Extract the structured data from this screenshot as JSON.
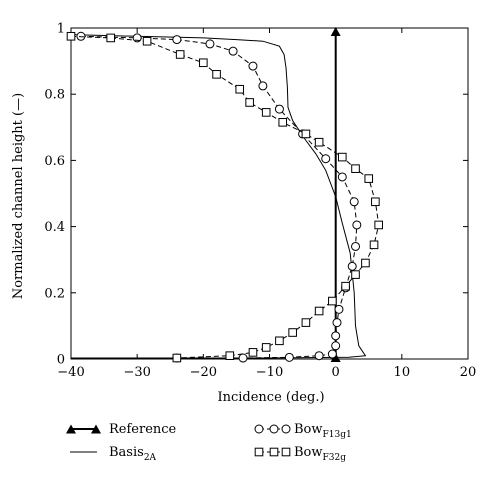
{
  "chart_data": {
    "type": "line",
    "title": "",
    "xlabel": "Incidence (deg.)",
    "ylabel": "Normalized channel height (—)",
    "xlim": [
      -40,
      20
    ],
    "ylim": [
      0,
      1
    ],
    "x_ticks": [
      "−40",
      "−30",
      "−20",
      "−10",
      "0",
      "10",
      "20"
    ],
    "y_ticks": [
      "0",
      "0.2",
      "0.4",
      "0.6",
      "0.8",
      "1"
    ],
    "grid": false,
    "legend_placement": "below",
    "series": [
      {
        "name": "Reference",
        "name_sub": "",
        "style": "solid-filled-triangle",
        "points": [
          [
            0,
            0
          ],
          [
            0,
            1
          ]
        ]
      },
      {
        "name": "Basis",
        "name_sub": "2A",
        "style": "solid",
        "points": [
          [
            -40,
            0.98
          ],
          [
            -30,
            0.975
          ],
          [
            -20,
            0.97
          ],
          [
            -15,
            0.965
          ],
          [
            -11,
            0.96
          ],
          [
            -8.5,
            0.945
          ],
          [
            -7.8,
            0.92
          ],
          [
            -7.5,
            0.88
          ],
          [
            -7.3,
            0.82
          ],
          [
            -7.2,
            0.76
          ],
          [
            -6.5,
            0.72
          ],
          [
            -4.5,
            0.66
          ],
          [
            -3,
            0.62
          ],
          [
            -1.5,
            0.57
          ],
          [
            0,
            0.49
          ],
          [
            1,
            0.41
          ],
          [
            2.2,
            0.32
          ],
          [
            2.8,
            0.2
          ],
          [
            3,
            0.1
          ],
          [
            3.5,
            0.04
          ],
          [
            4.5,
            0.01
          ],
          [
            2,
            0.005
          ],
          [
            -10,
            0.003
          ],
          [
            -40,
            0.003
          ]
        ]
      },
      {
        "name": "Bow",
        "name_sub": "F13g1",
        "style": "dashed-circle",
        "points": [
          [
            -38.5,
            0.975
          ],
          [
            -30,
            0.97
          ],
          [
            -24,
            0.965
          ],
          [
            -19,
            0.952
          ],
          [
            -15.5,
            0.93
          ],
          [
            -12.5,
            0.885
          ],
          [
            -11,
            0.825
          ],
          [
            -8.5,
            0.755
          ],
          [
            -5,
            0.68
          ],
          [
            -1.5,
            0.605
          ],
          [
            1,
            0.55
          ],
          [
            2.8,
            0.475
          ],
          [
            3.2,
            0.405
          ],
          [
            3,
            0.34
          ],
          [
            2.5,
            0.28
          ],
          [
            1.5,
            0.215
          ],
          [
            0.5,
            0.15
          ],
          [
            0.2,
            0.11
          ],
          [
            0,
            0.07
          ],
          [
            0,
            0.04
          ],
          [
            -0.5,
            0.015
          ],
          [
            -2.5,
            0.01
          ],
          [
            -7,
            0.005
          ],
          [
            -14,
            0.003
          ],
          [
            -24,
            0.003
          ],
          [
            -40,
            0.003
          ]
        ]
      },
      {
        "name": "Bow",
        "name_sub": "F32g",
        "style": "dashed-square",
        "points": [
          [
            -40,
            0.975
          ],
          [
            -34,
            0.97
          ],
          [
            -28.5,
            0.96
          ],
          [
            -23.5,
            0.92
          ],
          [
            -20,
            0.895
          ],
          [
            -18,
            0.86
          ],
          [
            -14.5,
            0.815
          ],
          [
            -13,
            0.775
          ],
          [
            -10.5,
            0.745
          ],
          [
            -8,
            0.715
          ],
          [
            -4.5,
            0.68
          ],
          [
            -2.5,
            0.655
          ],
          [
            1,
            0.61
          ],
          [
            3,
            0.575
          ],
          [
            5,
            0.545
          ],
          [
            6,
            0.475
          ],
          [
            6.5,
            0.405
          ],
          [
            5.8,
            0.345
          ],
          [
            4.5,
            0.29
          ],
          [
            3,
            0.255
          ],
          [
            1.5,
            0.22
          ],
          [
            -0.5,
            0.175
          ],
          [
            -2.5,
            0.145
          ],
          [
            -4.5,
            0.11
          ],
          [
            -6.5,
            0.08
          ],
          [
            -8.5,
            0.055
          ],
          [
            -10.5,
            0.035
          ],
          [
            -12.5,
            0.02
          ],
          [
            -16,
            0.01
          ],
          [
            -24,
            0.003
          ],
          [
            -40,
            0.003
          ]
        ]
      }
    ]
  }
}
